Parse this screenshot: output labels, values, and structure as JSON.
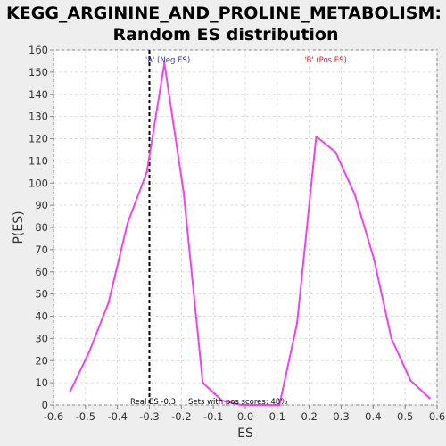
{
  "chart_data": {
    "type": "line",
    "title_line1": "KEGG_ARGININE_AND_PROLINE_METABOLISM:",
    "title_line2": "Random ES distribution",
    "xlabel": "ES",
    "ylabel": "P(ES)",
    "xlim": [
      -0.6,
      0.6
    ],
    "ylim": [
      0,
      160
    ],
    "x_ticks": [
      "-0.6",
      "-0.5",
      "-0.4",
      "-0.3",
      "-0.2",
      "-0.1",
      "0.0",
      "0.1",
      "0.2",
      "0.3",
      "0.4",
      "0.5",
      "0.6"
    ],
    "y_ticks": [
      "0",
      "10",
      "20",
      "30",
      "40",
      "50",
      "60",
      "70",
      "80",
      "90",
      "100",
      "110",
      "120",
      "130",
      "140",
      "150",
      "160"
    ],
    "grid": true,
    "series": [
      {
        "color": "#ee44ee",
        "x": [
          -0.548,
          -0.488,
          -0.428,
          -0.368,
          -0.308,
          -0.253,
          -0.193,
          -0.133,
          -0.073,
          -0.013,
          0.047,
          0.107,
          0.162,
          0.222,
          0.282,
          0.342,
          0.402,
          0.457,
          0.517,
          0.577
        ],
        "y": [
          6,
          24,
          46,
          82,
          105,
          154,
          96,
          10,
          2,
          0,
          0,
          0,
          37,
          121,
          114,
          95,
          66,
          30,
          11,
          3
        ]
      }
    ],
    "real_es": -0.3,
    "annotations": {
      "neg_label": "'A' (Neg ES)",
      "pos_label": "'B' (Pos ES)",
      "real_es_label": "Real ES -0.3",
      "pos_scores_label": "Sets with pos scores: 48%"
    },
    "colors": {
      "neg_label": "#3333cc",
      "pos_label": "#dd2222",
      "plot_bg": "#ffffff",
      "page_bg": "#eeeeee",
      "grid": "#dddddd",
      "real_es_line": "#000000"
    }
  }
}
